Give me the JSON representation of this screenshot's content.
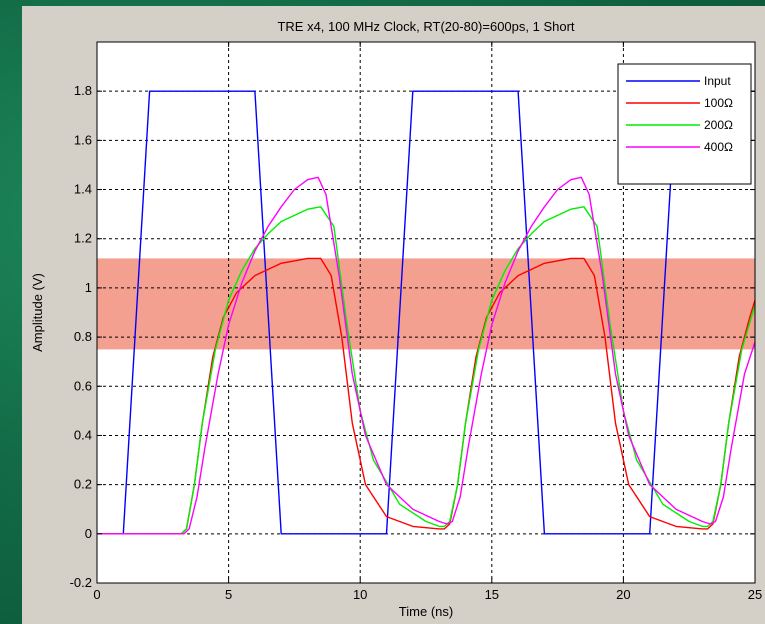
{
  "chart_data": {
    "type": "line",
    "title": "TRE x4, 100 MHz Clock, RT(20-80)=600ps, 1 Short",
    "xlabel": "Time (ns)",
    "ylabel": "Amplitude (V)",
    "xlim": [
      0,
      25
    ],
    "ylim": [
      -0.2,
      2.0
    ],
    "xticks": [
      0,
      5,
      10,
      15,
      20,
      25
    ],
    "yticks": [
      -0.2,
      0,
      0.2,
      0.4,
      0.6,
      0.8,
      1,
      1.2,
      1.4,
      1.6,
      1.8
    ],
    "xtick_labels": [
      "0",
      "5",
      "10",
      "15",
      "20",
      "25"
    ],
    "ytick_labels": [
      "-0.2",
      "0",
      "0.2",
      "0.4",
      "0.6",
      "0.8",
      "1",
      "1.2",
      "1.4",
      "1.6",
      "1.8"
    ],
    "grid": true,
    "grid_style": "dashed",
    "legend_position": "top-right",
    "threshold_band": {
      "ymin": 0.75,
      "ymax": 1.12,
      "color": "#f4a090"
    },
    "series": [
      {
        "name": "Input",
        "color": "#0000ff",
        "x": [
          0,
          1,
          2,
          6,
          7,
          11,
          12,
          16,
          17,
          21,
          22,
          26
        ],
        "y": [
          0,
          0,
          1.8,
          1.8,
          0,
          0,
          1.8,
          1.8,
          0,
          0,
          1.8,
          1.8
        ]
      },
      {
        "name": "100Ω",
        "color": "#ff0000",
        "x": [
          0,
          3.2,
          3.4,
          3.7,
          4.0,
          4.4,
          4.8,
          5.3,
          6.0,
          7.0,
          8.0,
          8.5,
          8.9,
          9.3,
          9.7,
          10.2,
          11.0,
          12.0,
          13.0,
          13.2,
          13.4,
          13.7,
          14.0,
          14.4,
          14.8,
          15.3,
          16.0,
          17.0,
          18.0,
          18.5,
          18.9,
          19.3,
          19.7,
          20.2,
          21.0,
          22.0,
          23.0,
          23.2,
          23.4,
          23.7,
          24.0,
          24.4,
          24.8,
          25.0
        ],
        "y": [
          0,
          0,
          0.02,
          0.2,
          0.45,
          0.72,
          0.88,
          0.98,
          1.05,
          1.1,
          1.12,
          1.12,
          1.05,
          0.8,
          0.45,
          0.2,
          0.07,
          0.03,
          0.02,
          0.02,
          0.04,
          0.2,
          0.45,
          0.72,
          0.88,
          0.98,
          1.05,
          1.1,
          1.12,
          1.12,
          1.05,
          0.8,
          0.45,
          0.2,
          0.07,
          0.03,
          0.02,
          0.02,
          0.04,
          0.2,
          0.45,
          0.72,
          0.88,
          0.95
        ]
      },
      {
        "name": "200Ω",
        "color": "#00ee00",
        "x": [
          0,
          3.2,
          3.4,
          3.7,
          4.0,
          4.5,
          5.0,
          5.5,
          6.0,
          6.5,
          7.0,
          8.0,
          8.5,
          9.0,
          9.5,
          10.0,
          10.5,
          11.5,
          12.5,
          13.0,
          13.2,
          13.4,
          13.7,
          14.0,
          14.5,
          15.0,
          15.5,
          16.0,
          16.5,
          17.0,
          18.0,
          18.5,
          19.0,
          19.5,
          20.0,
          20.5,
          21.5,
          22.5,
          23.0,
          23.2,
          23.4,
          23.7,
          24.0,
          24.5,
          25.0
        ],
        "y": [
          0,
          0,
          0.02,
          0.2,
          0.45,
          0.75,
          0.95,
          1.07,
          1.16,
          1.22,
          1.27,
          1.32,
          1.33,
          1.25,
          0.85,
          0.5,
          0.3,
          0.12,
          0.05,
          0.03,
          0.03,
          0.05,
          0.2,
          0.45,
          0.75,
          0.95,
          1.07,
          1.16,
          1.22,
          1.27,
          1.32,
          1.33,
          1.25,
          0.85,
          0.5,
          0.3,
          0.12,
          0.05,
          0.03,
          0.03,
          0.05,
          0.2,
          0.45,
          0.75,
          0.93
        ]
      },
      {
        "name": "400Ω",
        "color": "#ff00ff",
        "x": [
          0,
          3.3,
          3.5,
          3.8,
          4.1,
          4.6,
          5.0,
          5.5,
          6.0,
          6.5,
          7.0,
          7.5,
          8.0,
          8.4,
          8.7,
          9.2,
          9.7,
          10.2,
          11.0,
          12.0,
          13.0,
          13.3,
          13.5,
          13.8,
          14.1,
          14.6,
          15.0,
          15.5,
          16.0,
          16.5,
          17.0,
          17.5,
          18.0,
          18.4,
          18.7,
          19.2,
          19.7,
          20.2,
          21.0,
          22.0,
          23.0,
          23.3,
          23.5,
          23.8,
          24.1,
          24.6,
          25.0
        ],
        "y": [
          0,
          0,
          0.02,
          0.15,
          0.35,
          0.65,
          0.85,
          1.02,
          1.15,
          1.25,
          1.33,
          1.4,
          1.44,
          1.45,
          1.38,
          1.05,
          0.65,
          0.4,
          0.2,
          0.1,
          0.05,
          0.04,
          0.05,
          0.15,
          0.35,
          0.65,
          0.85,
          1.02,
          1.15,
          1.25,
          1.33,
          1.4,
          1.44,
          1.45,
          1.38,
          1.05,
          0.65,
          0.4,
          0.2,
          0.1,
          0.05,
          0.04,
          0.05,
          0.15,
          0.35,
          0.65,
          0.78
        ]
      }
    ]
  }
}
